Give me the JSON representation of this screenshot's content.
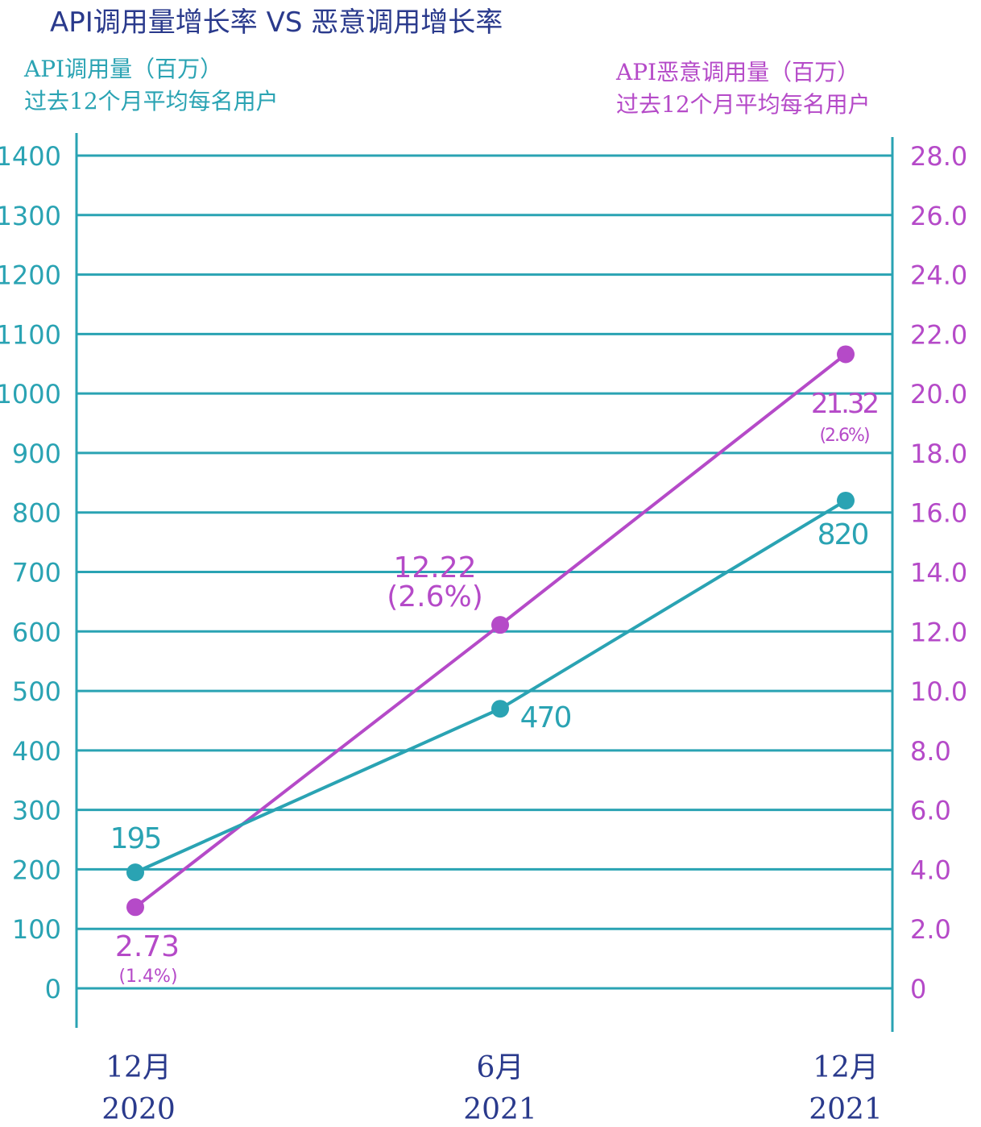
{
  "title": "API调用量增长率 VS 恶意调用增长率",
  "left_axis_label": {
    "line1": "API调用量（百万）",
    "line2": "过去12个月平均每名用户"
  },
  "right_axis_label": {
    "line1": "API恶意调用量（百万）",
    "line2": "过去12个月平均每名用户"
  },
  "colors": {
    "teal": "#2aa3b3",
    "purple": "#b54ac8",
    "title": "#2a3a8c",
    "xlabel": "#2a3a8c"
  },
  "chart_data": {
    "type": "line",
    "title": "API调用量增长率 VS 恶意调用增长率",
    "categories": [
      "12月\n2020",
      "6月\n2021",
      "12月\n2021"
    ],
    "x_labels": [
      {
        "month": "12月",
        "year": "2020"
      },
      {
        "month": "6月",
        "year": "2021"
      },
      {
        "month": "12月",
        "year": "2021"
      }
    ],
    "y_left": {
      "label": "API调用量（百万） 过去12个月平均每名用户",
      "ylim": [
        0,
        1400
      ],
      "ticks": [
        "0",
        "100",
        "200",
        "300",
        "400",
        "500",
        "600",
        "700",
        "800",
        "900",
        "1000",
        "1100",
        "1200",
        "1300",
        "1400"
      ]
    },
    "y_right": {
      "label": "API恶意调用量（百万） 过去12个月平均每名用户",
      "ylim": [
        0,
        28
      ],
      "ticks": [
        "0",
        "2.0",
        "4.0",
        "6.0",
        "8.0",
        "10.0",
        "12.0",
        "14.0",
        "16.0",
        "18.0",
        "20.0",
        "22.0",
        "24.0",
        "26.0",
        "28.0"
      ]
    },
    "grid": true,
    "series": [
      {
        "name": "API调用量（百万）",
        "axis": "left",
        "color": "#2aa3b3",
        "values": [
          195,
          470,
          820
        ],
        "labels": [
          "195",
          "470",
          "820"
        ],
        "sublabels": [
          "",
          "",
          ""
        ]
      },
      {
        "name": "API恶意调用量（百万）",
        "axis": "right",
        "color": "#b54ac8",
        "values": [
          2.73,
          12.22,
          21.32
        ],
        "labels": [
          "2.73",
          "12.22",
          "21.32"
        ],
        "sublabels": [
          "(1.4%)",
          "(2.6%)",
          "(2.6%)"
        ]
      }
    ]
  }
}
